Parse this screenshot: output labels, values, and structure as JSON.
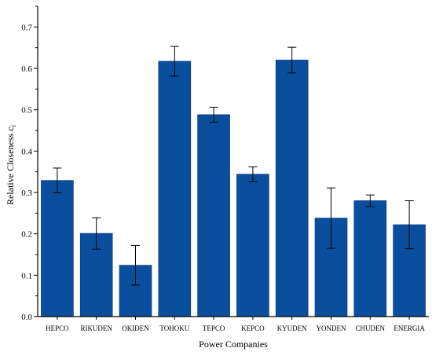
{
  "chart_data": {
    "type": "bar",
    "title": "",
    "xlabel": "Power Companies",
    "ylabel": "Relative Closeness c",
    "ylabel_subscript": "i",
    "categories": [
      "HEPCO",
      "RIKUDEN",
      "OKIDEN",
      "TOHOKU",
      "TEPCO",
      "KEPCO",
      "KYUDEN",
      "YONDEN",
      "CHUDEN",
      "ENERGIA"
    ],
    "values": [
      0.329,
      0.201,
      0.124,
      0.617,
      0.488,
      0.344,
      0.62,
      0.238,
      0.28,
      0.222
    ],
    "errors": [
      0.03,
      0.038,
      0.048,
      0.036,
      0.018,
      0.018,
      0.031,
      0.073,
      0.014,
      0.058
    ],
    "ylim": [
      0,
      0.75
    ],
    "yticks": [
      "0.0",
      "0.1",
      "0.2",
      "0.3",
      "0.4",
      "0.5",
      "0.6",
      "0.7"
    ],
    "grid": false,
    "colors": {
      "bar": "#0a4f9e",
      "bar_stroke": "#0d3f80",
      "axis": "#000000",
      "error_bar": "#000000"
    }
  }
}
